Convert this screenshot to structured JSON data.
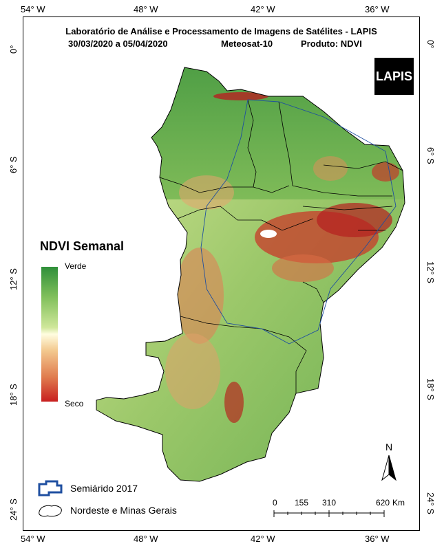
{
  "title": "Laboratório de Análise e Processamento de Imagens de Satélites - LAPIS",
  "subtitle": {
    "period": "30/03/2020  a  05/04/2020",
    "satellite": "Meteosat-10",
    "product": "Produto: NDVI"
  },
  "logo_text": "LAPIS",
  "longitude_labels": [
    "54° W",
    "48° W",
    "42° W",
    "36° W"
  ],
  "latitude_labels": [
    "0°",
    "6° S",
    "12° S",
    "18° S",
    "24° S"
  ],
  "legend": {
    "title": "NDVI Semanal",
    "high_label": "Verde",
    "low_label": "Seco",
    "items": [
      {
        "label": "Semiárido 2017",
        "icon": "semiarid-outline-icon",
        "color": "#1f4fa0"
      },
      {
        "label": "Nordeste e Minas Gerais",
        "icon": "region-outline-icon",
        "color": "#000000"
      }
    ]
  },
  "scale_bar": {
    "ticks": [
      "0",
      "155",
      "310",
      "620"
    ],
    "unit": "Km"
  },
  "north_arrow": "N",
  "colors": {
    "green": "#2f8f3a",
    "neutral": "#fffde0",
    "dry": "#c81f1f"
  }
}
